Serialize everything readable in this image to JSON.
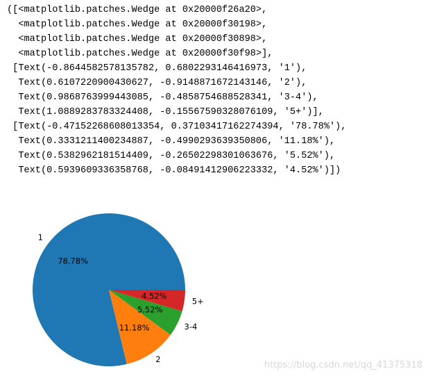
{
  "output_lines": [
    "([<matplotlib.patches.Wedge at 0x20000f26a20>,",
    "  <matplotlib.patches.Wedge at 0x20000f30198>,",
    "  <matplotlib.patches.Wedge at 0x20000f30898>,",
    "  <matplotlib.patches.Wedge at 0x20000f30f98>],",
    " [Text(-0.8644582578135782, 0.6802293146416973, '1'),",
    "  Text(0.6107220900430627, -0.9148871672143146, '2'),",
    "  Text(0.9868763999443085, -0.4858754688528341, '3-4'),",
    "  Text(1.0889283783324408, -0.15567590328076109, '5+')],",
    " [Text(-0.47152268608013354, 0.37103417162274394, '78.78%'),",
    "  Text(0.3331211400234887, -0.4990293639350806, '11.18%'),",
    "  Text(0.5382962181514409, -0.26502298301063676, '5.52%'),",
    "  Text(0.5939609336358768, -0.08491412906223332, '4.52%')])"
  ],
  "chart_data": {
    "type": "pie",
    "categories": [
      "1",
      "2",
      "3-4",
      "5+"
    ],
    "values": [
      78.78,
      11.18,
      5.52,
      4.52
    ],
    "value_labels": [
      "78.78%",
      "11.18%",
      "5.52%",
      "4.52%"
    ],
    "colors": [
      "#1f77b4",
      "#ff7f0e",
      "#2ca02c",
      "#d62728"
    ]
  },
  "watermark": "https://blog.csdn.net/qq_41375318"
}
